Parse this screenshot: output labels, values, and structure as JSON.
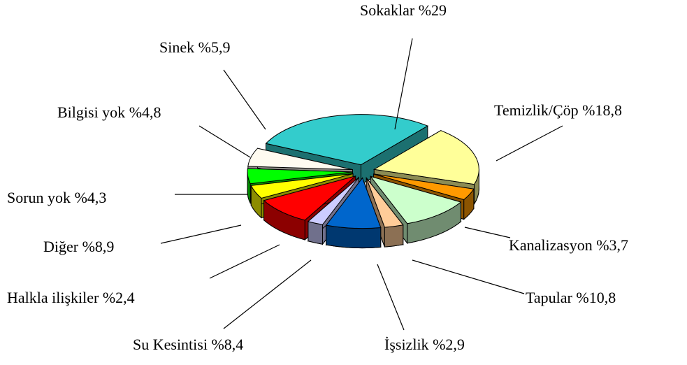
{
  "chart_data": {
    "type": "pie",
    "categories": [
      "Sokaklar",
      "Temizlik/Çöp",
      "Kanalizasyon",
      "Tapular",
      "İşsizlik",
      "Su Kesintisi",
      "Halkla ilişkiler",
      "Diğer",
      "Sorun yok",
      "Bilgisi yok",
      "Sinek"
    ],
    "values": [
      29,
      18.8,
      3.7,
      10.8,
      2.9,
      8.4,
      2.4,
      8.9,
      4.3,
      4.8,
      5.9
    ],
    "value_labels": [
      "%29",
      "%18,8",
      "%3,7",
      "%10,8",
      "%2,9",
      "%8,4",
      "%2,4",
      "%8,9",
      "%4,3",
      "%4,8",
      "%5,9"
    ],
    "colors": [
      "#33cccc",
      "#ffff99",
      "#ff9900",
      "#ccffcc",
      "#ffcc99",
      "#0066cc",
      "#ccccff",
      "#ff0000",
      "#ffff00",
      "#00ff00",
      "#fffbf0"
    ]
  }
}
